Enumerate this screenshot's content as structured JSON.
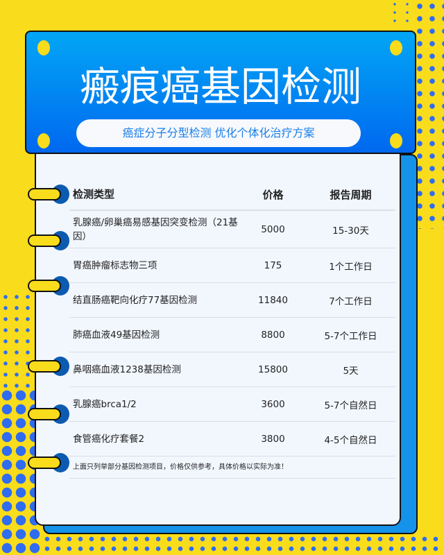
{
  "header": {
    "title": "瘢痕癌基因检测",
    "subtitle": "癌症分子分型检测 优化个体化治疗方案"
  },
  "table": {
    "columns": [
      "检测类型",
      "价格",
      "报告周期"
    ],
    "rows": [
      {
        "type": "乳腺癌/卵巢癌易感基因突变检测（21基因）",
        "price": "5000",
        "period": "15-30天"
      },
      {
        "type": "胃癌肿瘤标志物三项",
        "price": "175",
        "period": "1个工作日"
      },
      {
        "type": "结直肠癌靶向化疗77基因检测",
        "price": "11840",
        "period": "7个工作日"
      },
      {
        "type": "肺癌血液49基因检测",
        "price": "8800",
        "period": "5-7个工作日"
      },
      {
        "type": "鼻咽癌血液1238基因检测",
        "price": "15800",
        "period": "5天"
      },
      {
        "type": "乳腺癌brca1/2",
        "price": "3600",
        "period": "5-7个自然日"
      },
      {
        "type": "食管癌化疗套餐2",
        "price": "3800",
        "period": "4-5个自然日"
      }
    ],
    "note": "上面只列举部分基因检测项目，价格仅供参考，具体价格以实际为准！"
  },
  "colors": {
    "background": "#f9dc1c",
    "header_top": "#02a6f5",
    "header_bottom": "#0068ef",
    "accent_dots": "#2f6cf0"
  }
}
